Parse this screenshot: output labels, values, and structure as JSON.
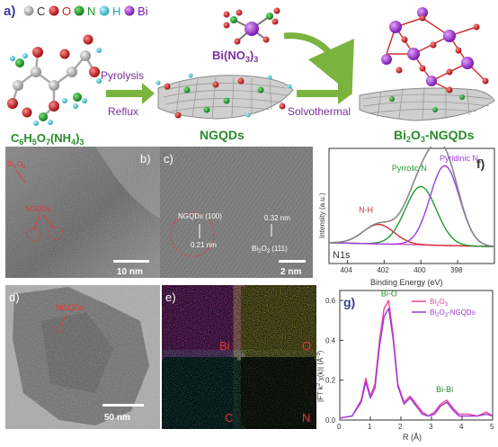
{
  "panel_a": {
    "label": "a)",
    "legend": [
      {
        "symbol": "C",
        "color": "#b9b9b9"
      },
      {
        "symbol": "O",
        "color": "#d42020"
      },
      {
        "symbol": "N",
        "color": "#1a9c2a"
      },
      {
        "symbol": "H",
        "color": "#45c7d8"
      },
      {
        "symbol": "Bi",
        "color": "#a233d6"
      }
    ],
    "precursor_formula": "C6H5O7(NH4)3",
    "step1_top": "Pyrolysis",
    "step1_bottom": "Reflux",
    "intermediate": "NGQDs",
    "reagent": "Bi(NO3)3",
    "step2": "Solvothermal",
    "product": "Bi2O3-NGQDs"
  },
  "panel_b": {
    "label": "b)",
    "ann1": "Bi2O3",
    "ann2": "NGQDs",
    "scale": "10 nm"
  },
  "panel_c": {
    "label": "c)",
    "ann1": "NGQDs (100)",
    "ann2": "0.21 nm",
    "ann3": "0.32 nm",
    "ann4": "Bi2O3 (111)",
    "scale": "2 nm"
  },
  "panel_d": {
    "label": "d)",
    "ann1": "NGQDs",
    "scale": "50 nm"
  },
  "panel_e": {
    "label": "e)",
    "maps": [
      "Bi",
      "O",
      "C",
      "N"
    ]
  },
  "chart_f": {
    "label": "f)",
    "type": "line",
    "xlabel": "Binding Energy (eV)",
    "ylabel": "Intensity (a.u.)",
    "xlim": [
      405,
      396
    ],
    "xticks": [
      404,
      402,
      400,
      398
    ],
    "corner_label": "N1s",
    "peaks": [
      {
        "name": "N-H",
        "center": 402.3,
        "color": "#d42a3a"
      },
      {
        "name": "Pyrrolic N",
        "center": 400.0,
        "color": "#1e9d2a"
      },
      {
        "name": "Pyridinic N",
        "center": 398.7,
        "color": "#a03be0"
      }
    ]
  },
  "chart_g": {
    "label": "g)",
    "type": "line",
    "xlabel": "R (Å)",
    "ylabel": "|FT k2 χ(k)| (Å-3)",
    "xlim": [
      0,
      5
    ],
    "ylim": [
      0,
      0.65
    ],
    "xticks": [
      0,
      1,
      2,
      3,
      4,
      5
    ],
    "yticks": [
      0.0,
      0.2,
      0.4,
      0.6
    ],
    "annotations": [
      "Bi-O",
      "Bi-Bi"
    ],
    "series": [
      {
        "name": "Bi2O3",
        "color": "#e8459a",
        "x": [
          0.0,
          0.4,
          0.7,
          0.85,
          1.0,
          1.15,
          1.3,
          1.45,
          1.6,
          1.75,
          1.9,
          2.1,
          2.3,
          2.5,
          2.7,
          2.9,
          3.1,
          3.3,
          3.5,
          3.7,
          3.9,
          4.2,
          4.5,
          4.8,
          5.0
        ],
        "y": [
          0.01,
          0.02,
          0.1,
          0.21,
          0.12,
          0.18,
          0.4,
          0.56,
          0.6,
          0.42,
          0.18,
          0.09,
          0.12,
          0.08,
          0.04,
          0.02,
          0.04,
          0.08,
          0.1,
          0.06,
          0.03,
          0.03,
          0.02,
          0.04,
          0.02
        ]
      },
      {
        "name": "Bi2O3-NGQDs",
        "color": "#9b37d8",
        "x": [
          0.0,
          0.4,
          0.7,
          0.85,
          1.0,
          1.15,
          1.3,
          1.45,
          1.6,
          1.75,
          1.9,
          2.1,
          2.3,
          2.5,
          2.7,
          2.9,
          3.1,
          3.3,
          3.5,
          3.7,
          3.9,
          4.2,
          4.5,
          4.8,
          5.0
        ],
        "y": [
          0.01,
          0.02,
          0.09,
          0.19,
          0.11,
          0.16,
          0.37,
          0.52,
          0.56,
          0.4,
          0.17,
          0.08,
          0.11,
          0.07,
          0.03,
          0.02,
          0.03,
          0.07,
          0.09,
          0.05,
          0.02,
          0.02,
          0.02,
          0.03,
          0.02
        ]
      }
    ]
  }
}
